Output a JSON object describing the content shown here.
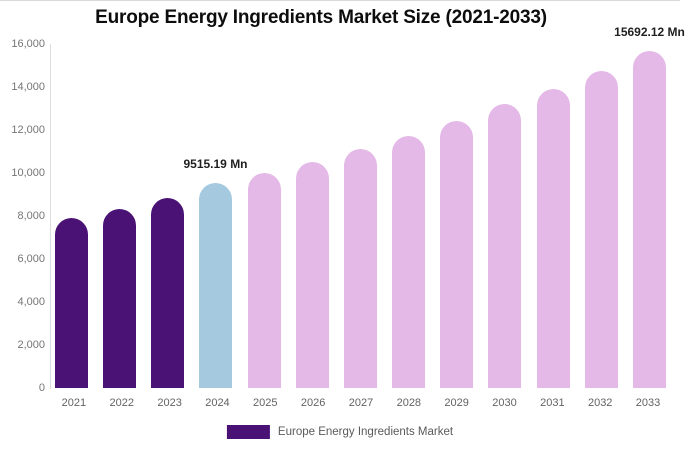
{
  "chart": {
    "legend": {
      "label": "Europe Energy Ingredients Market",
      "swatch_color": "#4B1276"
    }
  },
  "chart_data": {
    "type": "bar",
    "title": "Europe Energy Ingredients Market Size (2021-2033)",
    "categories": [
      "2021",
      "2022",
      "2023",
      "2024",
      "2025",
      "2026",
      "2027",
      "2028",
      "2029",
      "2030",
      "2031",
      "2032",
      "2033"
    ],
    "values": [
      7900,
      8330,
      8850,
      9515.19,
      9990,
      10510,
      11100,
      11720,
      12430,
      13200,
      13900,
      14740,
      15692.12
    ],
    "bar_colors": [
      "#4B1276",
      "#4B1276",
      "#4B1276",
      "#A5CADF",
      "#E4B8E7",
      "#E4B8E7",
      "#E4B8E7",
      "#E4B8E7",
      "#E4B8E7",
      "#E4B8E7",
      "#E4B8E7",
      "#E4B8E7",
      "#E4B8E7"
    ],
    "ylim": [
      0,
      16000
    ],
    "y_tick_step": 2000,
    "y_tick_labels": [
      "0",
      "2,000",
      "4,000",
      "6,000",
      "8,000",
      "10,000",
      "12,000",
      "14,000",
      "16,000"
    ],
    "xlabel": "",
    "ylabel": "",
    "grid": false,
    "legend_position": "bottom",
    "legend_entries": [
      "Europe Energy Ingredients Market"
    ],
    "annotations": [
      {
        "text": "9515.19 Mn",
        "category": "2024"
      },
      {
        "text": "15692.12 Mn",
        "category": "2033"
      }
    ],
    "accent_colors": {
      "historic_purple": "#4B1276",
      "current_year_blue": "#A5CADF",
      "forecast_pink": "#E4B8E7"
    }
  }
}
